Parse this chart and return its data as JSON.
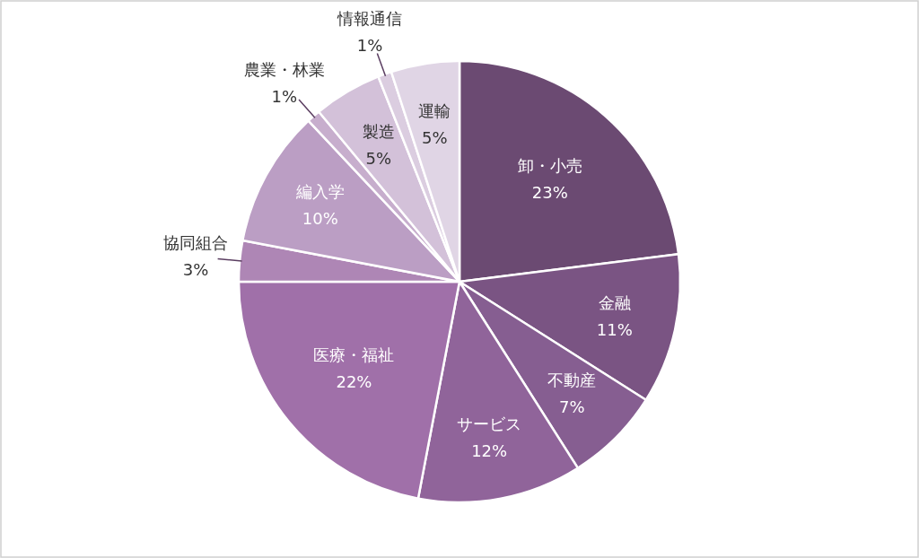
{
  "chart_data": {
    "type": "pie",
    "categories": [
      "卸・小売",
      "金融",
      "不動産",
      "サービス",
      "医療・福祉",
      "協同組合",
      "編入学",
      "農業・林業",
      "製造",
      "情報通信",
      "運輸"
    ],
    "values": [
      23,
      11,
      7,
      12,
      22,
      3,
      10,
      1,
      5,
      1,
      5
    ],
    "value_labels": [
      "23%",
      "11%",
      "7%",
      "12%",
      "22%",
      "3%",
      "10%",
      "1%",
      "5%",
      "1%",
      "5%"
    ],
    "colors": [
      "#6b4a72",
      "#7a5483",
      "#865e91",
      "#90649a",
      "#a070a9",
      "#ae86b5",
      "#bb9ec4",
      "#c7aecd",
      "#d3c1d9",
      "#dbcde0",
      "#e0d5e5"
    ]
  }
}
